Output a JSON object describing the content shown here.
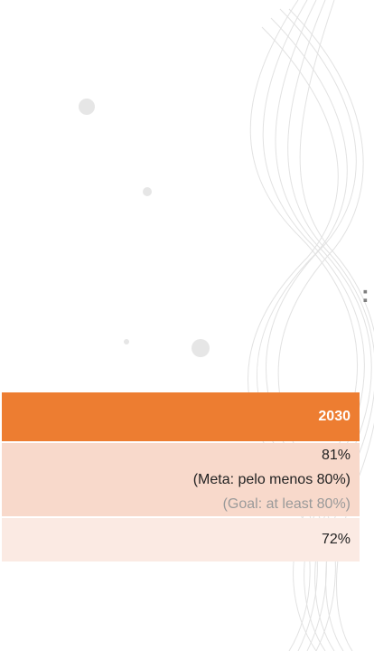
{
  "heading_fragment": ":",
  "table": {
    "header": [
      "2030"
    ],
    "rows": [
      [
        "81%",
        "(Meta: pelo menos 80%)",
        "(Goal: at least 80%)"
      ],
      [
        "72%"
      ]
    ]
  }
}
